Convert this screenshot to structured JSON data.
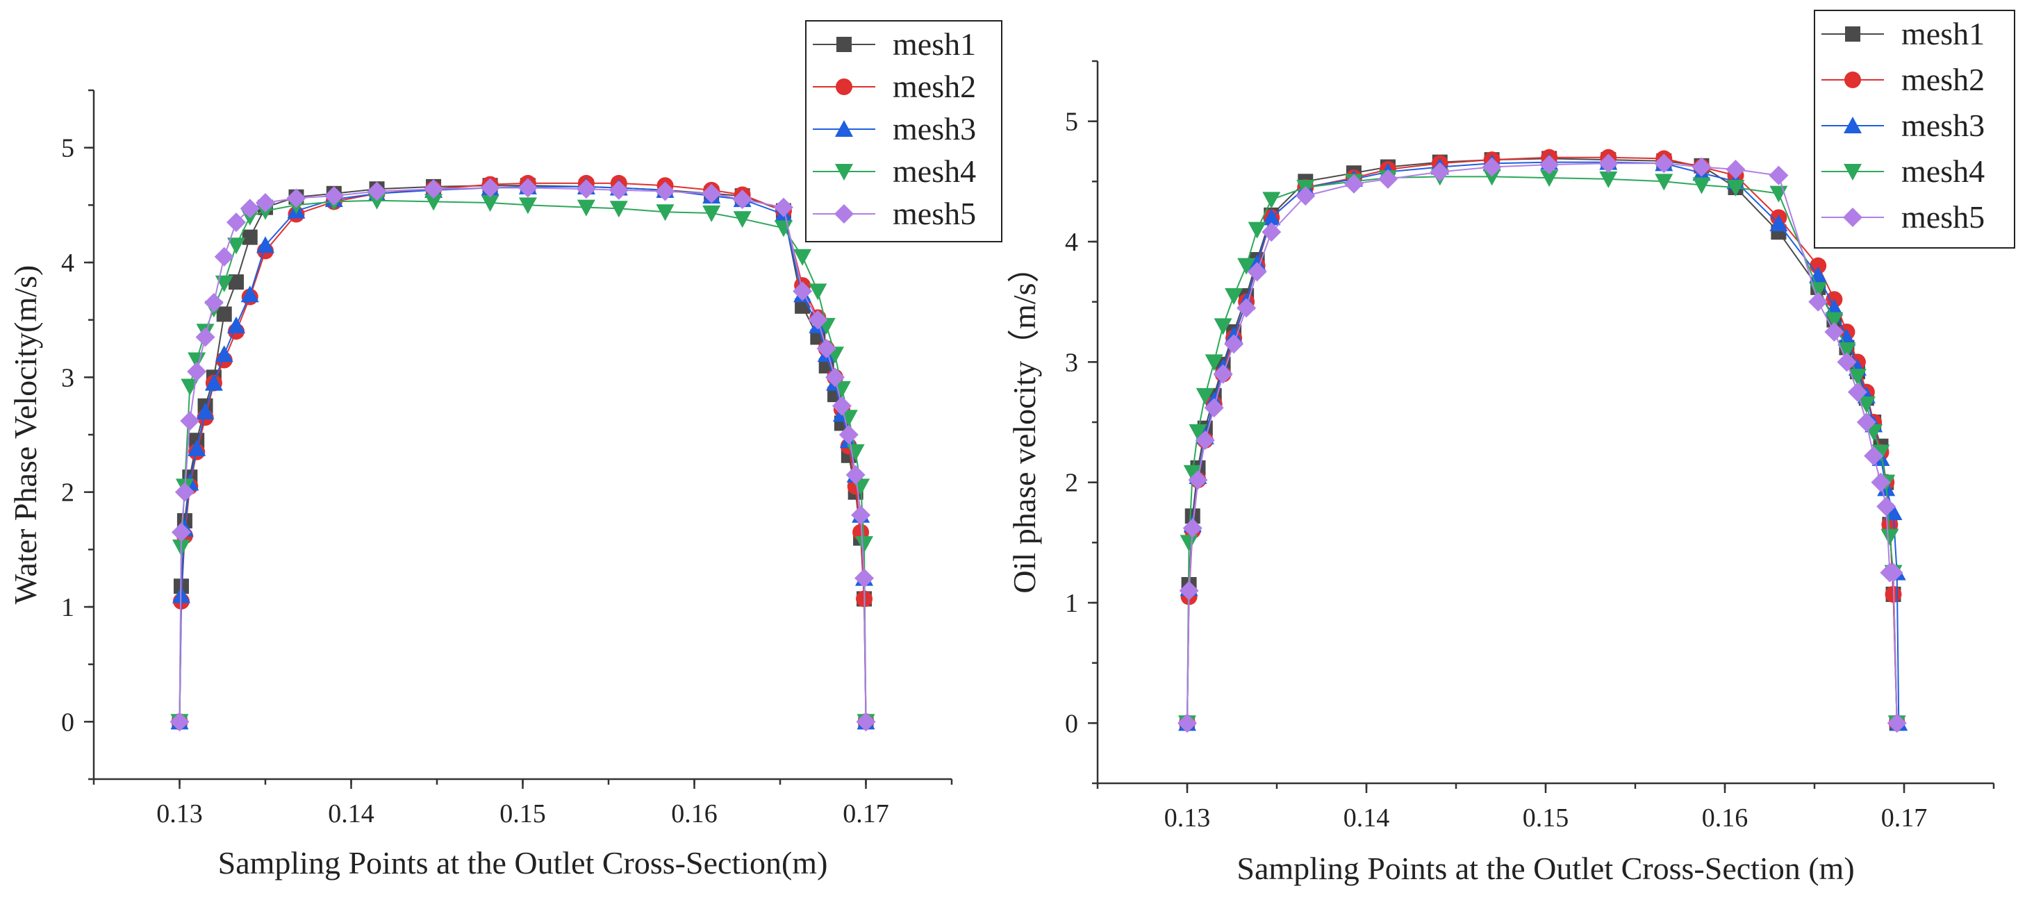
{
  "chart_data": [
    {
      "type": "line",
      "title": "",
      "xlabel": "Sampling Points at the Outlet Cross-Section(m)",
      "ylabel": "Water Phase Velocity(m/s)",
      "xlim": [
        0.125,
        0.175
      ],
      "ylim": [
        -0.5,
        5.5
      ],
      "xticks": [
        0.13,
        0.14,
        0.15,
        0.16,
        0.17
      ],
      "xtick_labels": [
        "0.13",
        "0.14",
        "0.15",
        "0.16",
        "0.17"
      ],
      "yticks": [
        0,
        1,
        2,
        3,
        4,
        5
      ],
      "ytick_labels": [
        "0",
        "1",
        "2",
        "3",
        "4",
        "5"
      ],
      "legend_position": "top-right",
      "series": [
        {
          "name": "mesh1",
          "color": "#4a4a4a",
          "marker": "square",
          "x": [
            0.13,
            0.1301,
            0.1303,
            0.1306,
            0.131,
            0.1315,
            0.132,
            0.1326,
            0.1333,
            0.1341,
            0.135,
            0.1368,
            0.139,
            0.1415,
            0.1448,
            0.1481,
            0.1503,
            0.1537,
            0.1556,
            0.1583,
            0.161,
            0.1628,
            0.1652,
            0.1663,
            0.1672,
            0.1677,
            0.1682,
            0.1686,
            0.169,
            0.1694,
            0.1697,
            0.1699,
            0.17
          ],
          "y": [
            0,
            1.18,
            1.75,
            2.13,
            2.45,
            2.75,
            3.0,
            3.55,
            3.83,
            4.22,
            4.48,
            4.57,
            4.6,
            4.64,
            4.66,
            4.67,
            4.67,
            4.66,
            4.65,
            4.63,
            4.6,
            4.58,
            4.45,
            3.62,
            3.35,
            3.1,
            2.85,
            2.6,
            2.32,
            2.0,
            1.6,
            1.07,
            0
          ]
        },
        {
          "name": "mesh2",
          "color": "#e03030",
          "marker": "circle",
          "x": [
            0.13,
            0.1301,
            0.1303,
            0.1306,
            0.131,
            0.1315,
            0.132,
            0.1326,
            0.1333,
            0.1341,
            0.135,
            0.1368,
            0.139,
            0.1415,
            0.1448,
            0.1481,
            0.1503,
            0.1537,
            0.1556,
            0.1583,
            0.161,
            0.1628,
            0.1652,
            0.1663,
            0.1672,
            0.1677,
            0.1682,
            0.1686,
            0.169,
            0.1694,
            0.1697,
            0.1699,
            0.17
          ],
          "y": [
            0,
            1.05,
            1.62,
            2.05,
            2.35,
            2.65,
            2.95,
            3.15,
            3.4,
            3.7,
            4.1,
            4.42,
            4.53,
            4.6,
            4.64,
            4.68,
            4.69,
            4.69,
            4.69,
            4.67,
            4.63,
            4.59,
            4.45,
            3.8,
            3.52,
            3.25,
            3.0,
            2.72,
            2.4,
            2.05,
            1.65,
            1.07,
            0
          ]
        },
        {
          "name": "mesh3",
          "color": "#1f5fe0",
          "marker": "triangle-up",
          "x": [
            0.13,
            0.1301,
            0.1303,
            0.1306,
            0.131,
            0.1315,
            0.132,
            0.1326,
            0.1333,
            0.1341,
            0.135,
            0.1368,
            0.139,
            0.1415,
            0.1448,
            0.1481,
            0.1503,
            0.1537,
            0.1556,
            0.1583,
            0.161,
            0.1628,
            0.1652,
            0.1663,
            0.1672,
            0.1677,
            0.1682,
            0.1686,
            0.169,
            0.1694,
            0.1697,
            0.1699,
            0.17
          ],
          "y": [
            0,
            1.1,
            1.68,
            2.08,
            2.38,
            2.7,
            2.95,
            3.2,
            3.45,
            3.72,
            4.15,
            4.45,
            4.55,
            4.6,
            4.63,
            4.65,
            4.66,
            4.66,
            4.65,
            4.63,
            4.58,
            4.55,
            4.42,
            3.72,
            3.45,
            3.2,
            2.95,
            2.68,
            2.45,
            2.15,
            1.8,
            1.25,
            0
          ]
        },
        {
          "name": "mesh4",
          "color": "#2ca85a",
          "marker": "triangle-down",
          "x": [
            0.13,
            0.1301,
            0.1303,
            0.1306,
            0.131,
            0.1315,
            0.132,
            0.1326,
            0.1333,
            0.1341,
            0.135,
            0.1368,
            0.139,
            0.1415,
            0.1448,
            0.1481,
            0.1503,
            0.1537,
            0.1556,
            0.1583,
            0.161,
            0.1628,
            0.1652,
            0.1663,
            0.1672,
            0.1677,
            0.1682,
            0.1686,
            0.169,
            0.1694,
            0.1697,
            0.1699,
            0.17
          ],
          "y": [
            0,
            1.52,
            2.05,
            2.92,
            3.15,
            3.4,
            3.6,
            3.82,
            4.15,
            4.4,
            4.45,
            4.5,
            4.53,
            4.54,
            4.53,
            4.52,
            4.5,
            4.48,
            4.47,
            4.44,
            4.43,
            4.38,
            4.3,
            4.05,
            3.75,
            3.45,
            3.2,
            2.9,
            2.65,
            2.35,
            2.05,
            1.55,
            0
          ]
        },
        {
          "name": "mesh5",
          "color": "#b07ee6",
          "marker": "diamond",
          "x": [
            0.13,
            0.1301,
            0.1303,
            0.1306,
            0.131,
            0.1315,
            0.132,
            0.1326,
            0.1333,
            0.1341,
            0.135,
            0.1368,
            0.139,
            0.1415,
            0.1448,
            0.1481,
            0.1503,
            0.1537,
            0.1556,
            0.1583,
            0.161,
            0.1628,
            0.1652,
            0.1663,
            0.1672,
            0.1677,
            0.1682,
            0.1686,
            0.169,
            0.1694,
            0.1697,
            0.1699,
            0.17
          ],
          "y": [
            0,
            1.65,
            2.0,
            2.62,
            3.05,
            3.35,
            3.65,
            4.05,
            4.35,
            4.47,
            4.52,
            4.56,
            4.58,
            4.62,
            4.64,
            4.65,
            4.65,
            4.64,
            4.63,
            4.62,
            4.6,
            4.55,
            4.48,
            3.75,
            3.5,
            3.25,
            3.0,
            2.75,
            2.5,
            2.15,
            1.8,
            1.25,
            0
          ]
        }
      ]
    },
    {
      "type": "line",
      "title": "",
      "xlabel": "Sampling Points at the Outlet Cross-Section (m)",
      "ylabel": "Oil phase velocity（m/s）",
      "xlim": [
        0.125,
        0.175
      ],
      "ylim": [
        -0.5,
        5.5
      ],
      "xticks": [
        0.13,
        0.14,
        0.15,
        0.16,
        0.17
      ],
      "xtick_labels": [
        "0.13",
        "0.14",
        "0.15",
        "0.16",
        "0.17"
      ],
      "yticks": [
        0,
        1,
        2,
        3,
        4,
        5
      ],
      "ytick_labels": [
        "0",
        "1",
        "2",
        "3",
        "4",
        "5"
      ],
      "legend_position": "top-right",
      "series": [
        {
          "name": "mesh1",
          "color": "#4a4a4a",
          "marker": "square",
          "x": [
            0.13,
            0.1301,
            0.1303,
            0.1306,
            0.131,
            0.1315,
            0.132,
            0.1326,
            0.1333,
            0.1339,
            0.1347,
            0.1366,
            0.1393,
            0.1412,
            0.1441,
            0.147,
            0.1502,
            0.1535,
            0.1566,
            0.1587,
            0.1606,
            0.163,
            0.1652,
            0.1661,
            0.1668,
            0.1674,
            0.1679,
            0.1683,
            0.1687,
            0.169,
            0.1692,
            0.1694,
            0.1696
          ],
          "y": [
            0,
            1.15,
            1.72,
            2.12,
            2.45,
            2.72,
            2.98,
            3.25,
            3.55,
            3.85,
            4.22,
            4.5,
            4.57,
            4.62,
            4.66,
            4.68,
            4.69,
            4.68,
            4.67,
            4.63,
            4.45,
            4.08,
            3.62,
            3.35,
            3.12,
            2.92,
            2.7,
            2.5,
            2.3,
            2.0,
            1.65,
            1.07,
            0
          ]
        },
        {
          "name": "mesh2",
          "color": "#e03030",
          "marker": "circle",
          "x": [
            0.13,
            0.1301,
            0.1303,
            0.1306,
            0.131,
            0.1315,
            0.132,
            0.1326,
            0.1333,
            0.1339,
            0.1347,
            0.1366,
            0.1393,
            0.1412,
            0.1441,
            0.147,
            0.1502,
            0.1535,
            0.1566,
            0.1587,
            0.1606,
            0.163,
            0.1652,
            0.1661,
            0.1668,
            0.1674,
            0.1679,
            0.1683,
            0.1687,
            0.169,
            0.1692,
            0.1694,
            0.1696
          ],
          "y": [
            0,
            1.05,
            1.6,
            2.02,
            2.35,
            2.65,
            2.9,
            3.2,
            3.5,
            3.8,
            4.2,
            4.45,
            4.53,
            4.6,
            4.65,
            4.68,
            4.7,
            4.7,
            4.69,
            4.62,
            4.55,
            4.2,
            3.8,
            3.52,
            3.25,
            3.0,
            2.75,
            2.5,
            2.25,
            2.0,
            1.65,
            1.07,
            0
          ]
        },
        {
          "name": "mesh3",
          "color": "#1f5fe0",
          "marker": "triangle-up",
          "x": [
            0.13,
            0.1301,
            0.1303,
            0.1306,
            0.131,
            0.1315,
            0.132,
            0.1326,
            0.1333,
            0.1339,
            0.1347,
            0.1366,
            0.1393,
            0.1412,
            0.1441,
            0.147,
            0.1502,
            0.1535,
            0.1566,
            0.1587,
            0.1606,
            0.163,
            0.1652,
            0.1661,
            0.1668,
            0.1674,
            0.1679,
            0.1683,
            0.1687,
            0.169,
            0.1694,
            0.1696,
            0.1697
          ],
          "y": [
            0,
            1.12,
            1.65,
            2.05,
            2.38,
            2.68,
            2.95,
            3.22,
            3.5,
            3.82,
            4.2,
            4.45,
            4.52,
            4.58,
            4.62,
            4.65,
            4.66,
            4.66,
            4.65,
            4.57,
            4.5,
            4.15,
            3.72,
            3.45,
            3.2,
            2.95,
            2.72,
            2.48,
            2.2,
            1.95,
            1.75,
            1.25,
            0
          ]
        },
        {
          "name": "mesh4",
          "color": "#2ca85a",
          "marker": "triangle-down",
          "x": [
            0.13,
            0.1301,
            0.1303,
            0.1306,
            0.131,
            0.1315,
            0.132,
            0.1326,
            0.1333,
            0.1339,
            0.1347,
            0.1366,
            0.1393,
            0.1412,
            0.1441,
            0.147,
            0.1502,
            0.1535,
            0.1566,
            0.1587,
            0.1606,
            0.163,
            0.1652,
            0.1661,
            0.1668,
            0.1674,
            0.1679,
            0.1683,
            0.1687,
            0.169,
            0.1692,
            0.1694,
            0.1696
          ],
          "y": [
            0,
            1.5,
            2.08,
            2.42,
            2.72,
            3.0,
            3.3,
            3.55,
            3.8,
            4.1,
            4.35,
            4.45,
            4.5,
            4.53,
            4.54,
            4.54,
            4.53,
            4.52,
            4.5,
            4.47,
            4.45,
            4.4,
            3.6,
            3.35,
            3.1,
            2.88,
            2.65,
            2.42,
            2.25,
            2.0,
            1.55,
            1.25,
            0
          ]
        },
        {
          "name": "mesh5",
          "color": "#b07ee6",
          "marker": "diamond",
          "x": [
            0.13,
            0.1301,
            0.1303,
            0.1306,
            0.131,
            0.1315,
            0.132,
            0.1326,
            0.1333,
            0.1339,
            0.1347,
            0.1366,
            0.1393,
            0.1412,
            0.1441,
            0.147,
            0.1502,
            0.1535,
            0.1566,
            0.1587,
            0.1606,
            0.163,
            0.1652,
            0.1661,
            0.1668,
            0.1674,
            0.1679,
            0.1683,
            0.1687,
            0.169,
            0.1692,
            0.1694,
            0.1696
          ],
          "y": [
            0,
            1.1,
            1.62,
            2.02,
            2.35,
            2.62,
            2.9,
            3.15,
            3.45,
            3.75,
            4.08,
            4.38,
            4.48,
            4.52,
            4.58,
            4.62,
            4.64,
            4.65,
            4.65,
            4.62,
            4.6,
            4.55,
            3.5,
            3.25,
            3.0,
            2.75,
            2.5,
            2.22,
            2.0,
            1.8,
            1.25,
            1.25,
            0
          ]
        }
      ]
    }
  ]
}
